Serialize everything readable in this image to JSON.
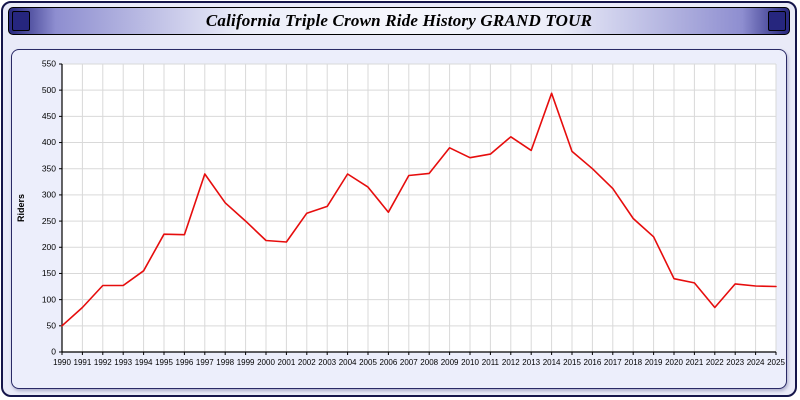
{
  "title": "California Triple Crown Ride History GRAND TOUR",
  "chart_data": {
    "type": "line",
    "title": "California Triple Crown Ride History GRAND TOUR",
    "xlabel": "",
    "ylabel": "Riders",
    "ylim": [
      0,
      550
    ],
    "ytick_step": 50,
    "grid": true,
    "legend_position": "none",
    "line_color": "#e60d0d",
    "categories": [
      1990,
      1991,
      1992,
      1993,
      1994,
      1995,
      1996,
      1997,
      1998,
      1999,
      2000,
      2001,
      2002,
      2003,
      2004,
      2005,
      2006,
      2007,
      2008,
      2009,
      2010,
      2011,
      2012,
      2013,
      2014,
      2015,
      2016,
      2017,
      2018,
      2019,
      2020,
      2021,
      2022,
      2023,
      2024,
      2025
    ],
    "series": [
      {
        "name": "Riders",
        "values": [
          50,
          85,
          127,
          127,
          155,
          225,
          224,
          340,
          285,
          250,
          213,
          210,
          265,
          278,
          340,
          315,
          267,
          337,
          341,
          390,
          371,
          378,
          411,
          385,
          494,
          383,
          350,
          312,
          255,
          220,
          140,
          132,
          85,
          130,
          126,
          125
        ]
      }
    ]
  }
}
